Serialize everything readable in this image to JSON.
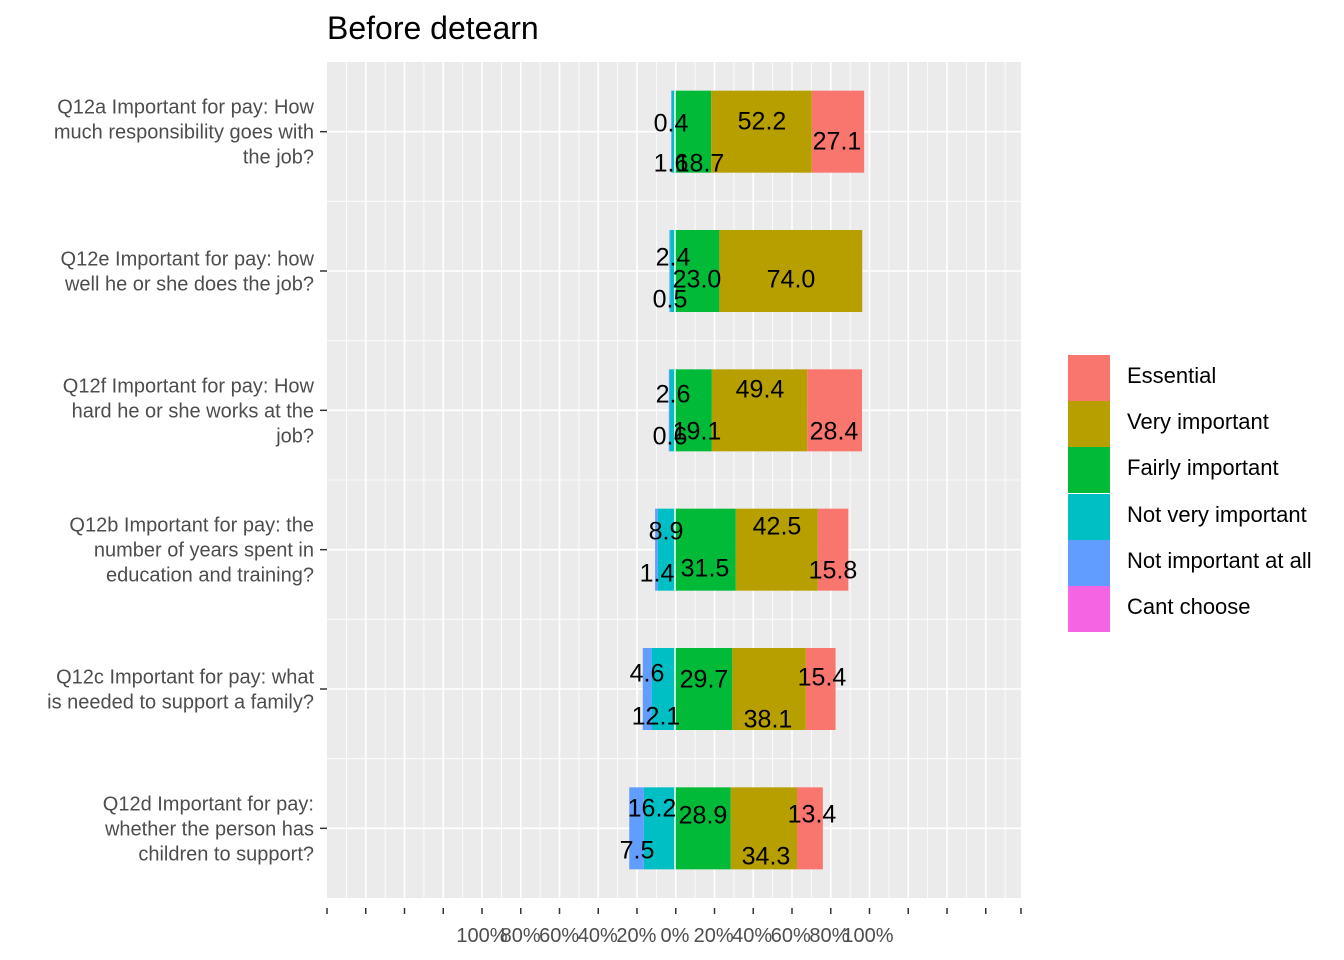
{
  "chart_data": {
    "type": "bar",
    "orientation": "horizontal",
    "stacked": "diverging",
    "title": "Before detearn",
    "xlabel": "",
    "ylabel": "",
    "grid": true,
    "legend_position": "right",
    "x_tick_labels": [
      "100%",
      "80%",
      "60%",
      "40%",
      "20%",
      "0%",
      "20%",
      "40%",
      "60%",
      "80%",
      "100%"
    ],
    "categories": [
      "Q12a Important for pay: How much responsibility goes with the job?",
      "Q12e Important for pay: how well he or she does the job?",
      "Q12f Important for pay: How hard he or she works at the job?",
      "Q12b Important for pay: the number of years spent in education and training?",
      "Q12c Important for pay: what is needed to support a family?",
      "Q12d Important for pay: whether the person has children to support?"
    ],
    "category_lines": [
      [
        "Q12a Important for pay: How",
        "much responsibility goes with",
        "the job?"
      ],
      [
        "Q12e Important for pay: how",
        "well he or she does the job?"
      ],
      [
        "Q12f Important for pay: How",
        "hard he or she works at the",
        "job?"
      ],
      [
        "Q12b Important for pay: the",
        "number of years spent in",
        "education and training?"
      ],
      [
        "Q12c Important for pay: what",
        "is needed to support a family?"
      ],
      [
        "Q12d Important for pay:",
        "whether the person has",
        "children to support?"
      ]
    ],
    "series": [
      {
        "name": "Essential",
        "color": "#F8766D",
        "side": "positive",
        "values": [
          27.1,
          0,
          28.4,
          15.8,
          15.4,
          13.4
        ]
      },
      {
        "name": "Very important",
        "color": "#B79F00",
        "side": "positive",
        "values": [
          52.2,
          74.0,
          49.4,
          42.5,
          38.1,
          34.3
        ]
      },
      {
        "name": "Fairly important",
        "color": "#00BA38",
        "side": "positive",
        "values": [
          18.7,
          23.0,
          19.1,
          31.5,
          29.7,
          28.9
        ]
      },
      {
        "name": "Not very important",
        "color": "#00BFC4",
        "side": "negative",
        "values": [
          1.6,
          2.4,
          2.6,
          8.9,
          12.1,
          16.2
        ]
      },
      {
        "name": "Not important at all",
        "color": "#619CFF",
        "side": "negative",
        "values": [
          0.4,
          0.5,
          0.6,
          1.4,
          4.6,
          7.5
        ]
      },
      {
        "name": "Cant choose",
        "color": "#F564E3",
        "side": "negative",
        "values": [
          0,
          0,
          0,
          0,
          0,
          0
        ]
      }
    ],
    "data_labels": [
      [
        "0.4",
        "1.6",
        "18.7",
        "52.2",
        "27.1"
      ],
      [
        "2.4",
        "0.5",
        "23.0",
        "74.0"
      ],
      [
        "2.6",
        "0.6",
        "19.1",
        "49.4",
        "28.4"
      ],
      [
        "8.9",
        "1.4",
        "31.5",
        "42.5",
        "15.8"
      ],
      [
        "4.6",
        "12.1",
        "29.7",
        "38.1",
        "15.4"
      ],
      [
        "16.2",
        "7.5",
        "28.9",
        "34.3",
        "13.4"
      ]
    ]
  }
}
